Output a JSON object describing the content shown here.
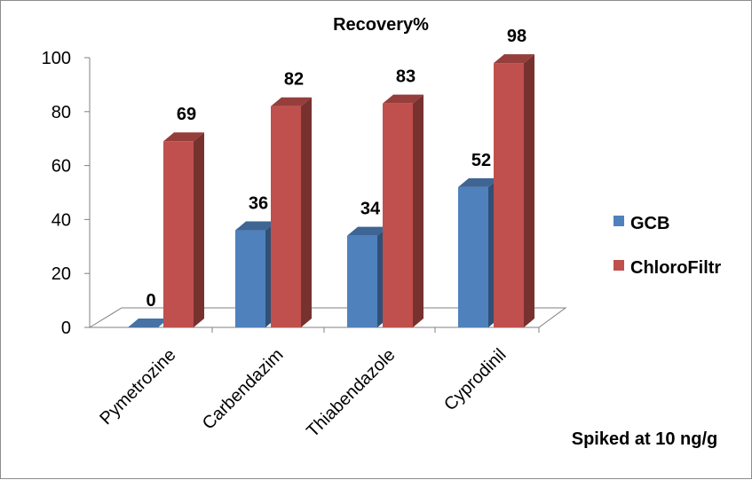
{
  "chart_data": {
    "type": "bar",
    "title": "Recovery%",
    "xlabel": "Spiked at 10 ng/g",
    "ylabel": "",
    "categories": [
      "Pymetrozine",
      "Carbendazim",
      "Thiabendazole",
      "Cyprodinil"
    ],
    "series": [
      {
        "name": "GCB",
        "values": [
          0,
          36,
          34,
          52
        ],
        "color": "#4F81BD"
      },
      {
        "name": "ChloroFiltr",
        "values": [
          69,
          82,
          83,
          98
        ],
        "color": "#C0504D"
      }
    ],
    "ylim": [
      0,
      100
    ],
    "yticks": [
      "0",
      "20",
      "40",
      "60",
      "80",
      "100"
    ],
    "data_labels": true,
    "legend_position": "right",
    "grid": false,
    "style": "3d-clustered-column"
  }
}
